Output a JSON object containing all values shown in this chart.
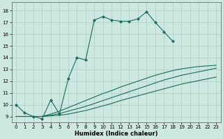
{
  "xlabel": "Humidex (Indice chaleur)",
  "bg_color": "#cce8e0",
  "grid_color": "#aaccc4",
  "line_color": "#1a6b5a",
  "xlim": [
    -0.5,
    23.5
  ],
  "ylim": [
    8.5,
    18.7
  ],
  "xticks": [
    0,
    1,
    2,
    3,
    4,
    5,
    6,
    7,
    8,
    9,
    10,
    11,
    12,
    13,
    14,
    15,
    16,
    17,
    18,
    19,
    20,
    21,
    22,
    23
  ],
  "yticks": [
    9,
    10,
    11,
    12,
    13,
    14,
    15,
    16,
    17,
    18
  ],
  "curve1_x": [
    0,
    1,
    2,
    3,
    4,
    5,
    6,
    7,
    8,
    9,
    10,
    11,
    12,
    13,
    14,
    15,
    16,
    17,
    18
  ],
  "curve1_y": [
    10.0,
    9.3,
    9.0,
    8.8,
    10.4,
    9.2,
    12.2,
    14.0,
    13.8,
    17.2,
    17.5,
    17.2,
    17.1,
    17.1,
    17.3,
    17.9,
    17.0,
    16.2,
    15.4
  ],
  "curve2_x": [
    0,
    1,
    2,
    3,
    4,
    5,
    6,
    7,
    8,
    9,
    10,
    11,
    12,
    13,
    14,
    15,
    16,
    17,
    18,
    19,
    20,
    21,
    22,
    23
  ],
  "curve2_y": [
    9.0,
    9.0,
    9.0,
    9.0,
    9.05,
    9.1,
    9.2,
    9.35,
    9.5,
    9.7,
    9.9,
    10.1,
    10.35,
    10.55,
    10.75,
    10.95,
    11.15,
    11.35,
    11.55,
    11.75,
    11.9,
    12.05,
    12.2,
    12.35
  ],
  "curve3_x": [
    3,
    4,
    5,
    6,
    7,
    8,
    9,
    10,
    11,
    12,
    13,
    14,
    15,
    16,
    17,
    18,
    19,
    20,
    21,
    22,
    23
  ],
  "curve3_y": [
    9.0,
    9.1,
    9.25,
    9.45,
    9.65,
    9.85,
    10.1,
    10.35,
    10.6,
    10.85,
    11.1,
    11.35,
    11.6,
    11.85,
    12.1,
    12.3,
    12.5,
    12.65,
    12.8,
    12.95,
    13.1
  ],
  "curve4_x": [
    3,
    4,
    5,
    6,
    7,
    8,
    9,
    10,
    11,
    12,
    13,
    14,
    15,
    16,
    17,
    18,
    19,
    20,
    21,
    22,
    23
  ],
  "curve4_y": [
    9.0,
    9.2,
    9.45,
    9.75,
    10.05,
    10.35,
    10.65,
    10.95,
    11.2,
    11.5,
    11.75,
    12.0,
    12.25,
    12.5,
    12.7,
    12.9,
    13.05,
    13.15,
    13.25,
    13.3,
    13.35
  ],
  "lw": 0.8,
  "ms": 2.2,
  "tick_fontsize": 5.0,
  "xlabel_fontsize": 6.0
}
